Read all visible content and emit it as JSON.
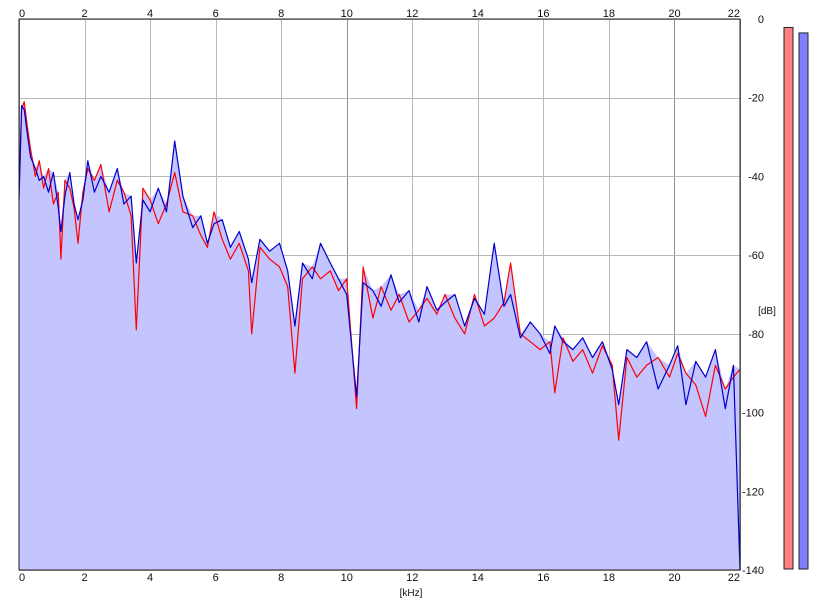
{
  "chart_data": {
    "type": "line",
    "xlabel": "[kHz]",
    "ylabel": "[dB]",
    "xlim": [
      0,
      22
    ],
    "ylim": [
      -140,
      0
    ],
    "x_ticks_top": [
      "0",
      "2",
      "4",
      "6",
      "8",
      "10",
      "12",
      "14",
      "16",
      "18",
      "20",
      "22"
    ],
    "x_ticks_bottom": [
      "0",
      "2",
      "4",
      "6",
      "8",
      "10",
      "12",
      "14",
      "16",
      "18",
      "20",
      "22"
    ],
    "y_ticks": [
      "0",
      "-20",
      "-40",
      "-60",
      "-80",
      "-100",
      "-120",
      "-140"
    ],
    "grid": true,
    "colors": {
      "red_series": "#ff0000",
      "blue_series": "#0000cc",
      "area_fill": "#c4c4ff",
      "left_meter": "#ff8080",
      "right_meter": "#8080ff"
    },
    "series": [
      {
        "values": [
          [
            0.0,
            -45
          ],
          [
            0.08,
            -23
          ],
          [
            0.16,
            -21
          ],
          [
            0.25,
            -27
          ],
          [
            0.35,
            -33
          ],
          [
            0.5,
            -40
          ],
          [
            0.62,
            -36
          ],
          [
            0.75,
            -43
          ],
          [
            0.9,
            -38
          ],
          [
            1.05,
            -47
          ],
          [
            1.2,
            -44
          ],
          [
            1.28,
            -61
          ],
          [
            1.4,
            -41
          ],
          [
            1.55,
            -43
          ],
          [
            1.68,
            -48
          ],
          [
            1.8,
            -57
          ],
          [
            1.95,
            -44
          ],
          [
            2.1,
            -38
          ],
          [
            2.3,
            -41
          ],
          [
            2.5,
            -37
          ],
          [
            2.75,
            -49
          ],
          [
            3.0,
            -41
          ],
          [
            3.2,
            -44
          ],
          [
            3.42,
            -50
          ],
          [
            3.58,
            -79
          ],
          [
            3.78,
            -43
          ],
          [
            4.0,
            -46
          ],
          [
            4.25,
            -52
          ],
          [
            4.5,
            -47
          ],
          [
            4.75,
            -39
          ],
          [
            5.0,
            -49
          ],
          [
            5.3,
            -50
          ],
          [
            5.55,
            -55
          ],
          [
            5.75,
            -58
          ],
          [
            5.95,
            -49
          ],
          [
            6.2,
            -56
          ],
          [
            6.45,
            -61
          ],
          [
            6.72,
            -57
          ],
          [
            7.0,
            -64
          ],
          [
            7.1,
            -80
          ],
          [
            7.35,
            -58
          ],
          [
            7.65,
            -61
          ],
          [
            7.95,
            -63
          ],
          [
            8.2,
            -68
          ],
          [
            8.42,
            -90
          ],
          [
            8.65,
            -66
          ],
          [
            8.95,
            -63
          ],
          [
            9.2,
            -66
          ],
          [
            9.5,
            -64
          ],
          [
            9.75,
            -69
          ],
          [
            10.0,
            -66
          ],
          [
            10.3,
            -99
          ],
          [
            10.5,
            -63
          ],
          [
            10.8,
            -76
          ],
          [
            11.05,
            -68
          ],
          [
            11.35,
            -74
          ],
          [
            11.6,
            -70
          ],
          [
            11.9,
            -77
          ],
          [
            12.2,
            -74
          ],
          [
            12.45,
            -71
          ],
          [
            12.75,
            -75
          ],
          [
            13.0,
            -70
          ],
          [
            13.3,
            -76
          ],
          [
            13.6,
            -80
          ],
          [
            13.9,
            -70
          ],
          [
            14.2,
            -78
          ],
          [
            14.5,
            -76
          ],
          [
            14.8,
            -72
          ],
          [
            15.0,
            -62
          ],
          [
            15.3,
            -80
          ],
          [
            15.6,
            -82
          ],
          [
            15.9,
            -84
          ],
          [
            16.2,
            -82
          ],
          [
            16.35,
            -95
          ],
          [
            16.6,
            -81
          ],
          [
            16.9,
            -87
          ],
          [
            17.2,
            -84
          ],
          [
            17.5,
            -90
          ],
          [
            17.8,
            -83
          ],
          [
            18.1,
            -88
          ],
          [
            18.3,
            -107
          ],
          [
            18.55,
            -86
          ],
          [
            18.85,
            -91
          ],
          [
            19.15,
            -88
          ],
          [
            19.5,
            -86
          ],
          [
            19.85,
            -91
          ],
          [
            20.1,
            -85
          ],
          [
            20.35,
            -90
          ],
          [
            20.65,
            -93
          ],
          [
            20.95,
            -101
          ],
          [
            21.25,
            -88
          ],
          [
            21.55,
            -94
          ],
          [
            21.8,
            -91
          ],
          [
            22.0,
            -89
          ]
        ]
      },
      {
        "values": [
          [
            0.0,
            -46
          ],
          [
            0.08,
            -22
          ],
          [
            0.16,
            -23
          ],
          [
            0.25,
            -29
          ],
          [
            0.35,
            -35
          ],
          [
            0.5,
            -38
          ],
          [
            0.62,
            -41
          ],
          [
            0.75,
            -40
          ],
          [
            0.9,
            -44
          ],
          [
            1.05,
            -39
          ],
          [
            1.2,
            -48
          ],
          [
            1.28,
            -54
          ],
          [
            1.4,
            -45
          ],
          [
            1.55,
            -39
          ],
          [
            1.68,
            -47
          ],
          [
            1.8,
            -51
          ],
          [
            1.95,
            -46
          ],
          [
            2.1,
            -36
          ],
          [
            2.3,
            -44
          ],
          [
            2.5,
            -40
          ],
          [
            2.75,
            -44
          ],
          [
            3.0,
            -38
          ],
          [
            3.2,
            -47
          ],
          [
            3.42,
            -45
          ],
          [
            3.58,
            -62
          ],
          [
            3.78,
            -46
          ],
          [
            4.0,
            -49
          ],
          [
            4.25,
            -43
          ],
          [
            4.5,
            -49
          ],
          [
            4.75,
            -31
          ],
          [
            5.0,
            -45
          ],
          [
            5.3,
            -53
          ],
          [
            5.55,
            -50
          ],
          [
            5.75,
            -57
          ],
          [
            5.95,
            -52
          ],
          [
            6.2,
            -51
          ],
          [
            6.45,
            -58
          ],
          [
            6.72,
            -54
          ],
          [
            7.0,
            -61
          ],
          [
            7.1,
            -67
          ],
          [
            7.35,
            -56
          ],
          [
            7.65,
            -59
          ],
          [
            7.95,
            -57
          ],
          [
            8.2,
            -64
          ],
          [
            8.42,
            -78
          ],
          [
            8.65,
            -62
          ],
          [
            8.95,
            -66
          ],
          [
            9.2,
            -57
          ],
          [
            9.5,
            -62
          ],
          [
            9.75,
            -66
          ],
          [
            10.0,
            -70
          ],
          [
            10.3,
            -96
          ],
          [
            10.5,
            -67
          ],
          [
            10.8,
            -69
          ],
          [
            11.05,
            -73
          ],
          [
            11.35,
            -65
          ],
          [
            11.6,
            -72
          ],
          [
            11.9,
            -69
          ],
          [
            12.2,
            -77
          ],
          [
            12.45,
            -68
          ],
          [
            12.75,
            -74
          ],
          [
            13.0,
            -72
          ],
          [
            13.3,
            -70
          ],
          [
            13.6,
            -78
          ],
          [
            13.9,
            -71
          ],
          [
            14.2,
            -75
          ],
          [
            14.5,
            -57
          ],
          [
            14.8,
            -73
          ],
          [
            15.0,
            -70
          ],
          [
            15.3,
            -81
          ],
          [
            15.6,
            -77
          ],
          [
            15.9,
            -80
          ],
          [
            16.2,
            -85
          ],
          [
            16.35,
            -78
          ],
          [
            16.6,
            -82
          ],
          [
            16.9,
            -84
          ],
          [
            17.2,
            -81
          ],
          [
            17.5,
            -86
          ],
          [
            17.8,
            -82
          ],
          [
            18.1,
            -89
          ],
          [
            18.3,
            -98
          ],
          [
            18.55,
            -84
          ],
          [
            18.85,
            -86
          ],
          [
            19.15,
            -82
          ],
          [
            19.5,
            -94
          ],
          [
            19.85,
            -88
          ],
          [
            20.1,
            -83
          ],
          [
            20.35,
            -98
          ],
          [
            20.65,
            -87
          ],
          [
            20.95,
            -91
          ],
          [
            21.25,
            -84
          ],
          [
            21.55,
            -99
          ],
          [
            21.8,
            -88
          ],
          [
            22.0,
            -140
          ]
        ]
      }
    ],
    "meters": [
      {
        "level": 0.99
      },
      {
        "level": 0.98
      }
    ]
  }
}
